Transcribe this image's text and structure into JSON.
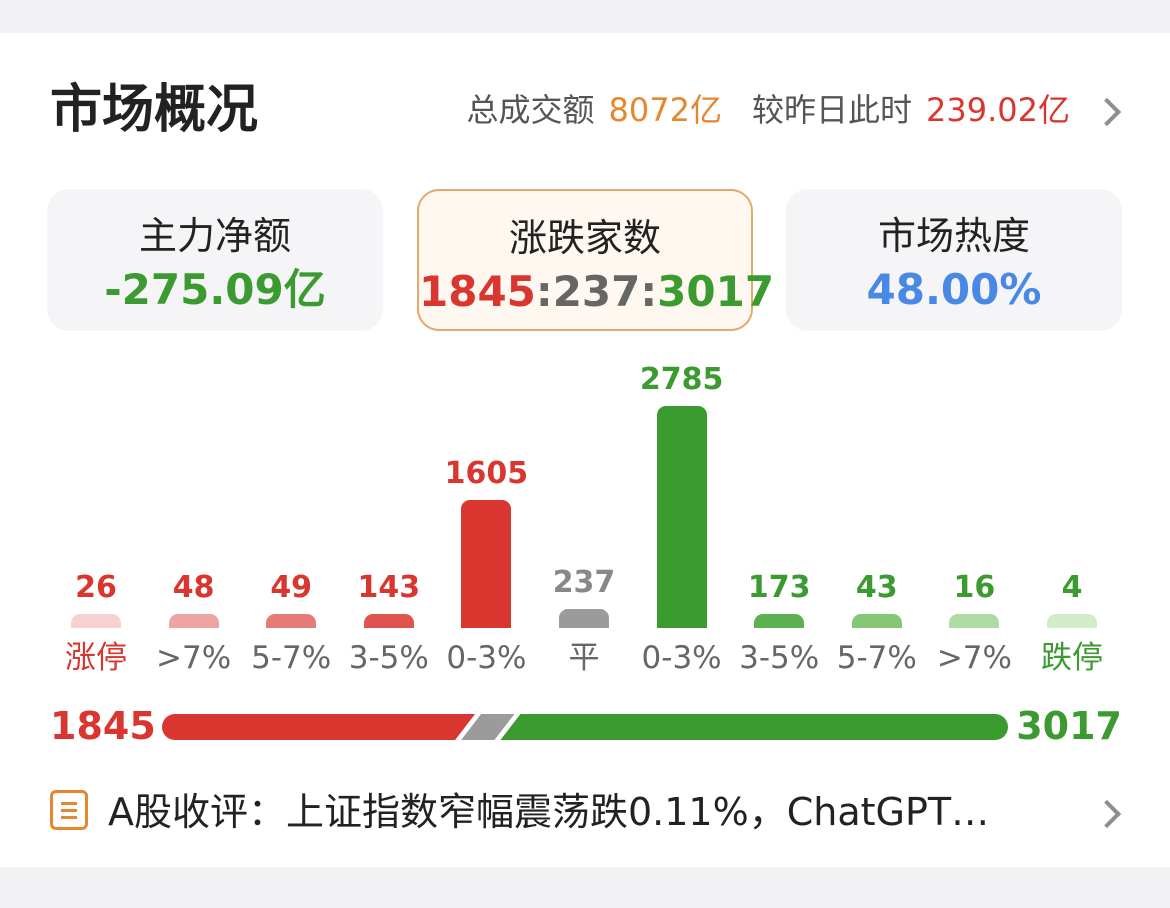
{
  "header": {
    "title": "市场概况",
    "turnover_label": "总成交额",
    "turnover_value": "8072亿",
    "compare_label": "较昨日此时",
    "compare_value": "239.02亿"
  },
  "stats": [
    {
      "label": "主力净额",
      "value": "-275.09亿",
      "color": "#3b9a30"
    },
    {
      "label": "涨跌家数",
      "up": "1845",
      "flat": "237",
      "down": "3017",
      "sep": ":"
    },
    {
      "label": "市场热度",
      "value": "48.00%",
      "color": "#4a88e6"
    }
  ],
  "chart_data": {
    "type": "bar",
    "categories": [
      "涨停",
      ">7%",
      "5-7%",
      "3-5%",
      "0-3%",
      "平",
      "0-3%",
      "3-5%",
      "5-7%",
      ">7%",
      "跌停"
    ],
    "values": [
      26,
      48,
      49,
      143,
      1605,
      237,
      2785,
      173,
      43,
      16,
      4
    ],
    "colors": [
      "#f6d1d0",
      "#eea4a2",
      "#e67b77",
      "#df544f",
      "#d93630",
      "#9b9b9b",
      "#3b9a30",
      "#5bb14f",
      "#86c677",
      "#aedba4",
      "#d2ecc9"
    ],
    "label_colors": [
      "#d93630",
      "#d93630",
      "#d93630",
      "#d93630",
      "#d93630",
      "#888888",
      "#3b9a30",
      "#3b9a30",
      "#3b9a30",
      "#3b9a30",
      "#3b9a30"
    ],
    "category_colors": [
      "#d93630",
      "#666666",
      "#666666",
      "#666666",
      "#666666",
      "#666666",
      "#666666",
      "#666666",
      "#666666",
      "#666666",
      "#3b9a30"
    ]
  },
  "ratio": {
    "up_total": "1845",
    "down_total": "3017",
    "up": 1845,
    "flat": 237,
    "down": 3017,
    "up_color": "#d93630",
    "flat_color": "#9b9b9b",
    "down_color": "#3b9a30"
  },
  "news": {
    "icon": "document-icon",
    "text": "A股收评：上证指数窄幅震荡跌0.11%，ChatGPT…"
  }
}
